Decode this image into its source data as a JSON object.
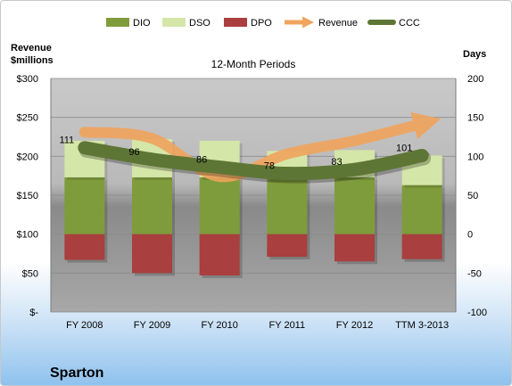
{
  "chart_data": {
    "type": "bar",
    "title": "12-Month Periods",
    "company": "Sparton",
    "left_axis_label": [
      "Revenue",
      "$millions"
    ],
    "right_axis_label": "Days",
    "categories": [
      "FY 2008",
      "FY 2009",
      "FY 2010",
      "FY 2011",
      "FY 2012",
      "TTM 3-2013"
    ],
    "left_axis": {
      "min": 0,
      "max": 300,
      "step": 50,
      "tick_labels": [
        "$-",
        "$50",
        "$100",
        "$150",
        "$200",
        "$250",
        "$300"
      ]
    },
    "right_axis": {
      "min": -100,
      "max": 200,
      "step": 50,
      "tick_labels": [
        "-100",
        "-50",
        "0",
        "50",
        "100",
        "150",
        "200"
      ]
    },
    "series": [
      {
        "name": "DIO",
        "type": "stacked-bar",
        "axis": "days",
        "values": [
          73,
          73,
          73,
          71,
          73,
          63
        ]
      },
      {
        "name": "DSO",
        "type": "stacked-bar",
        "axis": "days",
        "values": [
          47,
          49,
          47,
          36,
          35,
          38
        ]
      },
      {
        "name": "DPO",
        "type": "stacked-bar-negative",
        "axis": "days",
        "values": [
          -33,
          -50,
          -53,
          -29,
          -35,
          -32
        ]
      },
      {
        "name": "Revenue",
        "type": "arrow-line",
        "axis": "dollars",
        "values": [
          231,
          223,
          174,
          203,
          220,
          242
        ]
      },
      {
        "name": "CCC",
        "type": "line",
        "axis": "days",
        "values": [
          111,
          96,
          86,
          78,
          83,
          101
        ]
      }
    ],
    "ccc_labels": [
      "111",
      "96",
      "86",
      "78",
      "83",
      "101"
    ],
    "legend": [
      "DIO",
      "DSO",
      "DPO",
      "Revenue",
      "CCC"
    ],
    "legend_position": "top",
    "grid": true,
    "colors": {
      "DIO": "#7f9c3c",
      "DSO": "#d4e6a8",
      "DPO": "#a93f3e",
      "Revenue": "#f0a45d",
      "CCC": "#5e7635"
    }
  }
}
